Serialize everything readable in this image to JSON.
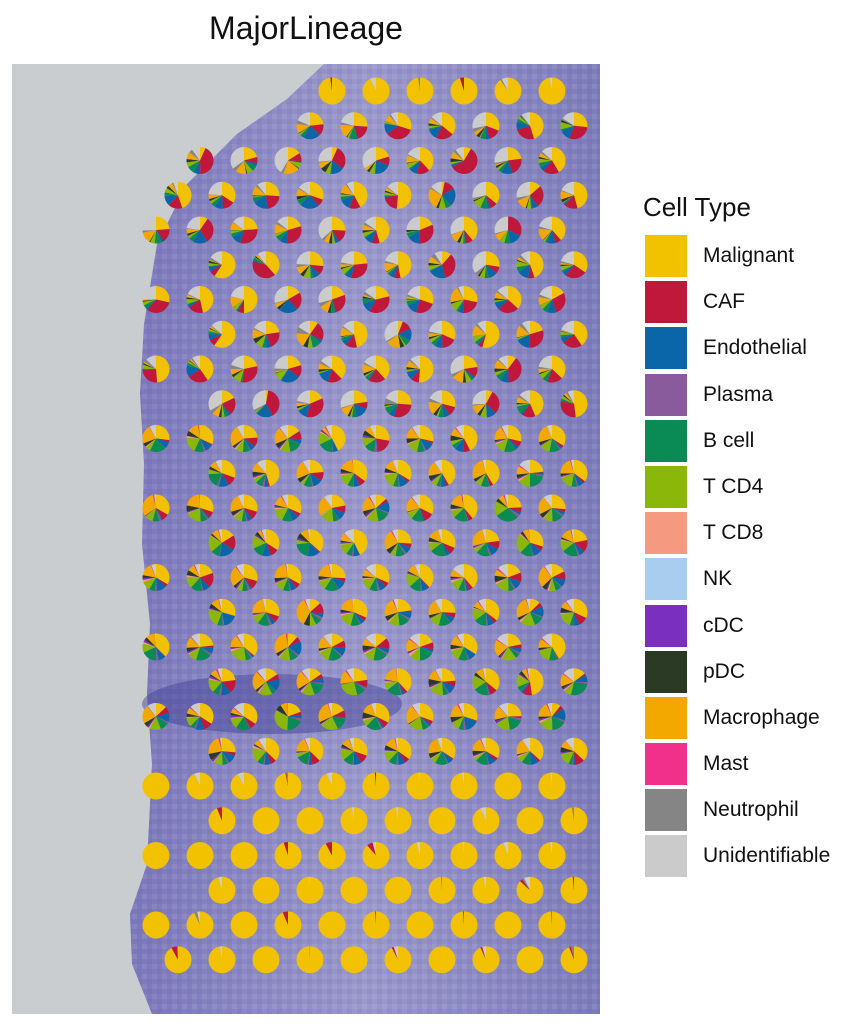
{
  "chart_data": {
    "type": "spatial-pie",
    "title": "MajorLineage",
    "legend": {
      "title": "Cell Type",
      "placement": "right",
      "entries": [
        {
          "label": "Malignant",
          "color": "#F2C200"
        },
        {
          "label": "CAF",
          "color": "#C0183A"
        },
        {
          "label": "Endothelial",
          "color": "#0A66A8"
        },
        {
          "label": "Plasma",
          "color": "#8A5B9C"
        },
        {
          "label": "B cell",
          "color": "#0A8A55"
        },
        {
          "label": "T CD4",
          "color": "#8AB70A"
        },
        {
          "label": "T CD8",
          "color": "#F59A80"
        },
        {
          "label": "NK",
          "color": "#A9CDEF"
        },
        {
          "label": "cDC",
          "color": "#7B2FBE"
        },
        {
          "label": "pDC",
          "color": "#2B3A25"
        },
        {
          "label": "Macrophage",
          "color": "#F3A800"
        },
        {
          "label": "Mast",
          "color": "#F0308A"
        },
        {
          "label": "Neutrophil",
          "color": "#858585"
        },
        {
          "label": "Unidentifiable",
          "color": "#CBCBCB"
        }
      ]
    },
    "grid": {
      "rows": 26,
      "spots_per_row": 10
    },
    "rows": [
      {
        "first": 7,
        "profile": "malignant"
      },
      {
        "first": 6,
        "profile": "mixed"
      },
      {
        "first": 4,
        "profile": "mixed"
      },
      {
        "first": 3,
        "profile": "mixed"
      },
      {
        "first": 3,
        "profile": "mixed"
      },
      {
        "first": 4,
        "profile": "mixed"
      },
      {
        "first": 3,
        "profile": "mixed"
      },
      {
        "first": 4,
        "profile": "mixed"
      },
      {
        "first": 3,
        "profile": "mixed"
      },
      {
        "first": 4,
        "profile": "mixed"
      },
      {
        "first": 3,
        "profile": "immune"
      },
      {
        "first": 4,
        "profile": "immune"
      },
      {
        "first": 3,
        "profile": "immune"
      },
      {
        "first": 4,
        "profile": "immune"
      },
      {
        "first": 3,
        "profile": "immune"
      },
      {
        "first": 4,
        "profile": "immune"
      },
      {
        "first": 3,
        "profile": "immune"
      },
      {
        "first": 4,
        "profile": "immune"
      },
      {
        "first": 3,
        "profile": "immune"
      },
      {
        "first": 4,
        "profile": "immune"
      },
      {
        "first": 3,
        "profile": "malignant"
      },
      {
        "first": 4,
        "profile": "malignant"
      },
      {
        "first": 3,
        "profile": "malignant"
      },
      {
        "first": 4,
        "profile": "malignant"
      },
      {
        "first": 3,
        "profile": "malignant"
      },
      {
        "first": 3,
        "profile": "malignant"
      }
    ]
  }
}
